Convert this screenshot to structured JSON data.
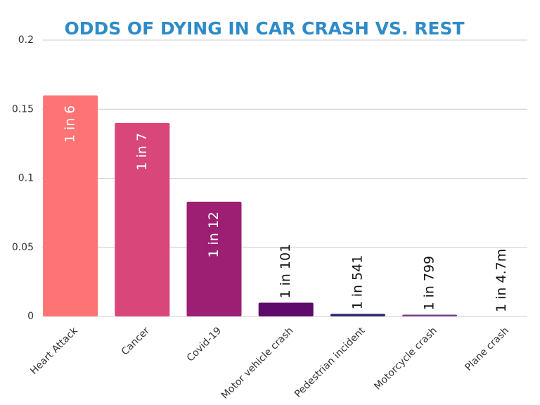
{
  "chart_data": {
    "type": "bar",
    "title": "ODDS OF DYING IN CAR CRASH VS. REST",
    "categories": [
      "Heart Attack",
      "Cancer",
      "Covid-19",
      "Motor vehicle crash",
      "Pedestrian incident",
      "Motorcycle crash",
      "Plane crash"
    ],
    "values": [
      0.16,
      0.14,
      0.083,
      0.0099,
      0.00185,
      0.00125,
      2.1e-07
    ],
    "value_labels": [
      "1 in 6",
      "1 in 7",
      "1 in 12",
      "1 in 101",
      "1 in 541",
      "1 in 799",
      "1 in 4.7m"
    ],
    "colors": [
      "#fe7474",
      "#d9467a",
      "#9c1f74",
      "#5e0a6b",
      "#2e2a6b",
      "#7b3f8e",
      "#c9a0d0"
    ],
    "ylim": [
      0,
      0.2
    ],
    "yticks": [
      0,
      0.05,
      0.1,
      0.15,
      0.2
    ],
    "grid": true
  }
}
